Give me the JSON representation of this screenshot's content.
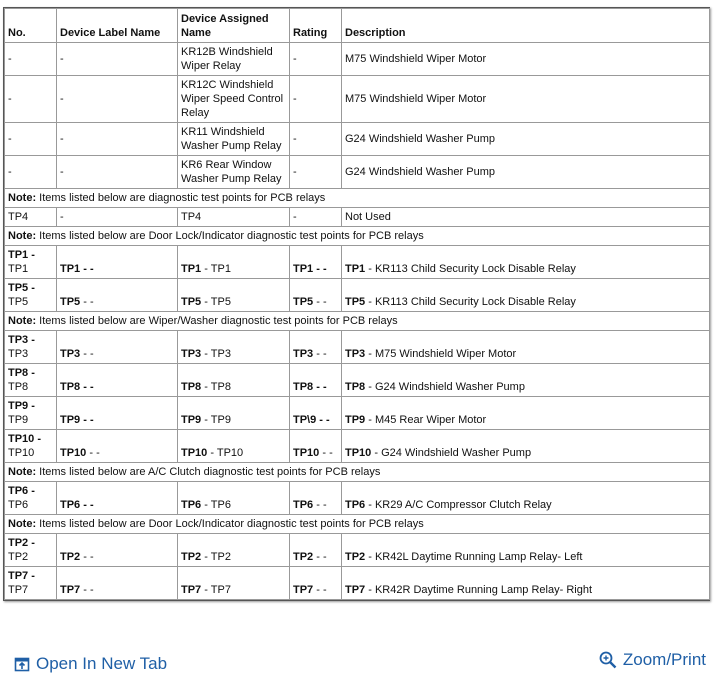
{
  "table": {
    "header": [
      "No.",
      "Device Label Name",
      "Device Assigned Name",
      "Rating",
      "Description"
    ],
    "rows": [
      {
        "cells": [
          "-",
          "-",
          "KR12B Windshield Wiper Relay",
          "-",
          "M75 Windshield Wiper Motor"
        ]
      },
      {
        "cells": [
          "-",
          "-",
          "KR12C Windshield Wiper Speed Control Relay",
          "-",
          "M75 Windshield Wiper Motor"
        ]
      },
      {
        "cells": [
          "-",
          "-",
          "KR11 Windshield Washer Pump Relay",
          "-",
          "G24 Windshield Washer Pump"
        ]
      },
      {
        "cells": [
          "-",
          "-",
          "KR6 Rear Window Washer Pump Relay",
          "-",
          "G24 Windshield Washer Pump"
        ]
      },
      {
        "note": {
          "bold": "Note:",
          "text": " Items listed below are diagnostic test points for PCB relays"
        }
      },
      {
        "cells": [
          "TP4",
          "-",
          "TP4",
          "-",
          "Not Used"
        ]
      },
      {
        "note": {
          "bold": "Note:",
          "text": " Items listed below are Door Lock/Indicator diagnostic test points for PCB relays"
        }
      },
      {
        "cells": [
          {
            "bold": "TP1 -",
            "text": "TP1"
          },
          {
            "bold": "TP1 - -"
          },
          {
            "bold": "TP1",
            "text": " - TP1"
          },
          {
            "bold": "TP1 - -"
          },
          {
            "bold": "TP1",
            "text": " - KR113 Child Security Lock Disable Relay"
          }
        ]
      },
      {
        "cells": [
          {
            "bold": "TP5 -",
            "text": "TP5"
          },
          {
            "bold": "TP5",
            "text": " - -"
          },
          {
            "bold": "TP5",
            "text": " - TP5"
          },
          {
            "bold": "TP5",
            "text": " - -"
          },
          {
            "bold": "TP5",
            "text": " - KR113 Child Security Lock Disable Relay"
          }
        ]
      },
      {
        "note": {
          "bold": "Note:",
          "text": " Items listed below are Wiper/Washer diagnostic test points for PCB relays"
        }
      },
      {
        "cells": [
          {
            "bold": "TP3 -",
            "text": "TP3"
          },
          {
            "bold": "TP3",
            "text": " - -"
          },
          {
            "bold": "TP3",
            "text": " - TP3"
          },
          {
            "bold": "TP3",
            "text": " - -"
          },
          {
            "bold": "TP3",
            "text": " - M75 Windshield Wiper Motor"
          }
        ]
      },
      {
        "cells": [
          {
            "bold": "TP8 -",
            "text": "TP8"
          },
          {
            "bold": "TP8 - -"
          },
          {
            "bold": "TP8",
            "text": " - TP8"
          },
          {
            "bold": "TP8 - -"
          },
          {
            "bold": "TP8",
            "text": " - G24 Windshield Washer Pump"
          }
        ]
      },
      {
        "cells": [
          {
            "bold": "TP9 -",
            "text": "TP9"
          },
          {
            "bold": "TP9 - -"
          },
          {
            "bold": "TP9",
            "text": " - TP9"
          },
          {
            "bold": "TP\\9 - -"
          },
          {
            "bold": "TP9",
            "text": " - M45 Rear Wiper Motor"
          }
        ]
      },
      {
        "cells": [
          {
            "bold": "TP10 -",
            "text": "TP10"
          },
          {
            "bold": "TP10",
            "text": " - -"
          },
          {
            "bold": "TP10",
            "text": " - TP10"
          },
          {
            "bold": "TP10",
            "text": " - -"
          },
          {
            "bold": "TP10",
            "text": " - G24 Windshield Washer Pump"
          }
        ]
      },
      {
        "note": {
          "bold": "Note:",
          "text": " Items listed below are A/C Clutch diagnostic test points for PCB relays"
        }
      },
      {
        "cells": [
          {
            "bold": "TP6 -",
            "text": "TP6"
          },
          {
            "bold": "TP6 - -"
          },
          {
            "bold": "TP6",
            "text": " - TP6"
          },
          {
            "bold": "TP6",
            "text": " - -"
          },
          {
            "bold": "TP6",
            "text": " - KR29 A/C Compressor Clutch Relay"
          }
        ]
      },
      {
        "note": {
          "bold": "Note:",
          "text": " Items listed below are Door Lock/Indicator diagnostic test points for PCB relays"
        }
      },
      {
        "cells": [
          {
            "bold": "TP2 -",
            "text": "TP2"
          },
          {
            "bold": "TP2",
            "text": " - -"
          },
          {
            "bold": "TP2",
            "text": " - TP2"
          },
          {
            "bold": "TP2",
            "text": " - -"
          },
          {
            "bold": "TP2",
            "text": " - KR42L Daytime Running Lamp Relay- Left"
          }
        ]
      },
      {
        "cells": [
          {
            "bold": "TP7 -",
            "text": "TP7"
          },
          {
            "bold": "TP7",
            "text": " - -"
          },
          {
            "bold": "TP7",
            "text": " - TP7"
          },
          {
            "bold": "TP7",
            "text": " - -"
          },
          {
            "bold": "TP7",
            "text": " - KR42R Daytime Running Lamp Relay- Right"
          }
        ]
      }
    ]
  },
  "footer": {
    "open": "Open In New Tab",
    "zoom": "Zoom/Print"
  }
}
